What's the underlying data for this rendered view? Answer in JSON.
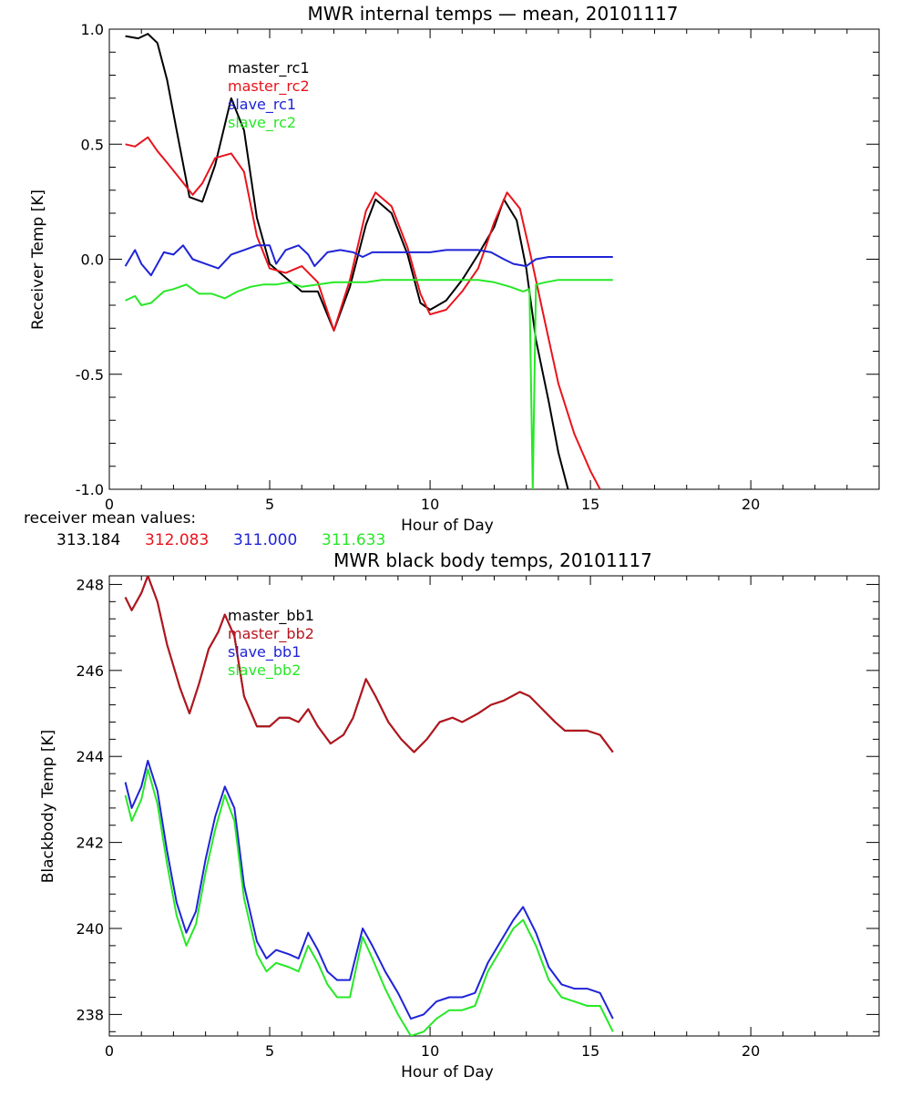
{
  "chart_data": [
    {
      "type": "line",
      "title": "MWR internal temps — mean, 20101117",
      "xlabel": "Hour of Day",
      "ylabel": "Receiver Temp [K]",
      "xlim": [
        0,
        24
      ],
      "ylim": [
        -1.0,
        1.0
      ],
      "xticks": [
        0,
        5,
        10,
        15,
        20
      ],
      "xtick_labels": [
        "0",
        "5",
        "10",
        "15",
        "20"
      ],
      "yticks": [
        1.0,
        0.5,
        0.0,
        -0.5,
        -1.0
      ],
      "ytick_labels": [
        "1.0",
        "0.5",
        "0.0",
        "-0.5",
        "-1.0"
      ],
      "grid": false,
      "legend_placement": "top-left inside",
      "series": [
        {
          "name": "master_rc1",
          "color": "#000000",
          "x": [
            0.5,
            0.9,
            1.2,
            1.5,
            1.8,
            2.1,
            2.5,
            2.9,
            3.3,
            3.8,
            4.2,
            4.6,
            5.0,
            5.5,
            6.0,
            6.5,
            7.0,
            7.5,
            8.0,
            8.3,
            8.8,
            9.3,
            9.7,
            10.0,
            10.5,
            11.0,
            11.5,
            12.0,
            12.3,
            12.7,
            13.0,
            13.3,
            13.7,
            14.0,
            14.3
          ],
          "y": [
            0.97,
            0.96,
            0.98,
            0.94,
            0.78,
            0.56,
            0.27,
            0.25,
            0.41,
            0.7,
            0.56,
            0.18,
            -0.02,
            -0.08,
            -0.14,
            -0.14,
            -0.31,
            -0.12,
            0.15,
            0.26,
            0.2,
            0.02,
            -0.19,
            -0.22,
            -0.18,
            -0.09,
            0.02,
            0.14,
            0.26,
            0.17,
            -0.04,
            -0.35,
            -0.62,
            -0.84,
            -1.0
          ]
        },
        {
          "name": "master_rc2",
          "color": "#e8141d",
          "x": [
            0.5,
            0.8,
            1.2,
            1.5,
            1.8,
            2.2,
            2.6,
            2.9,
            3.3,
            3.8,
            4.2,
            4.6,
            5.0,
            5.5,
            6.0,
            6.5,
            7.0,
            7.5,
            8.0,
            8.3,
            8.8,
            9.3,
            9.7,
            10.0,
            10.5,
            11.0,
            11.5,
            12.0,
            12.4,
            12.8,
            13.1,
            13.5,
            14.0,
            14.5,
            15.0,
            15.3
          ],
          "y": [
            0.5,
            0.49,
            0.53,
            0.47,
            0.42,
            0.35,
            0.28,
            0.33,
            0.44,
            0.46,
            0.38,
            0.1,
            -0.04,
            -0.06,
            -0.03,
            -0.1,
            -0.31,
            -0.09,
            0.21,
            0.29,
            0.23,
            0.05,
            -0.15,
            -0.24,
            -0.22,
            -0.14,
            -0.04,
            0.16,
            0.29,
            0.22,
            0.04,
            -0.22,
            -0.54,
            -0.76,
            -0.92,
            -1.0
          ]
        },
        {
          "name": "slave_rc1",
          "color": "#1f24d6",
          "x": [
            0.5,
            0.8,
            1.0,
            1.3,
            1.7,
            2.0,
            2.3,
            2.6,
            3.0,
            3.4,
            3.8,
            4.2,
            4.6,
            5.0,
            5.2,
            5.5,
            5.9,
            6.2,
            6.4,
            6.8,
            7.2,
            7.6,
            7.9,
            8.2,
            8.6,
            9.0,
            9.5,
            10.0,
            10.5,
            11.0,
            11.5,
            11.9,
            12.3,
            12.6,
            13.0,
            13.3,
            13.7,
            14.2,
            14.7,
            15.2,
            15.7
          ],
          "y": [
            -0.03,
            0.04,
            -0.02,
            -0.07,
            0.03,
            0.02,
            0.06,
            0.0,
            -0.02,
            -0.04,
            0.02,
            0.04,
            0.06,
            0.06,
            -0.02,
            0.04,
            0.06,
            0.02,
            -0.03,
            0.03,
            0.04,
            0.03,
            0.01,
            0.03,
            0.03,
            0.03,
            0.03,
            0.03,
            0.04,
            0.04,
            0.04,
            0.03,
            0.0,
            -0.02,
            -0.03,
            0.0,
            0.01,
            0.01,
            0.01,
            0.01,
            0.01
          ]
        },
        {
          "name": "slave_rc2",
          "color": "#27e827",
          "x": [
            0.5,
            0.8,
            1.0,
            1.3,
            1.7,
            2.0,
            2.4,
            2.8,
            3.2,
            3.6,
            4.0,
            4.4,
            4.8,
            5.2,
            5.6,
            6.0,
            6.5,
            7.0,
            7.5,
            8.0,
            8.5,
            9.0,
            9.5,
            10.0,
            10.5,
            11.0,
            11.5,
            12.0,
            12.5,
            12.9,
            13.1,
            13.2,
            13.3,
            13.6,
            14.0,
            14.5,
            15.0,
            15.7
          ],
          "y": [
            -0.18,
            -0.16,
            -0.2,
            -0.19,
            -0.14,
            -0.13,
            -0.11,
            -0.15,
            -0.15,
            -0.17,
            -0.14,
            -0.12,
            -0.11,
            -0.11,
            -0.1,
            -0.12,
            -0.11,
            -0.1,
            -0.1,
            -0.1,
            -0.09,
            -0.09,
            -0.09,
            -0.09,
            -0.09,
            -0.09,
            -0.09,
            -0.1,
            -0.12,
            -0.14,
            -0.13,
            -1.0,
            -0.11,
            -0.1,
            -0.09,
            -0.09,
            -0.09,
            -0.09
          ]
        }
      ],
      "annotation": {
        "label": "receiver mean values:",
        "values": [
          {
            "text": "313.184",
            "color": "#000000"
          },
          {
            "text": "312.083",
            "color": "#e8141d"
          },
          {
            "text": "311.000",
            "color": "#1f24d6"
          },
          {
            "text": "311.633",
            "color": "#27e827"
          }
        ]
      }
    },
    {
      "type": "line",
      "title": "MWR black body temps, 20101117",
      "xlabel": "Hour of Day",
      "ylabel": "Blackbody Temp [K]",
      "xlim": [
        0,
        24
      ],
      "ylim": [
        237.5,
        248.2
      ],
      "xticks": [
        0,
        5,
        10,
        15,
        20
      ],
      "xtick_labels": [
        "0",
        "5",
        "10",
        "15",
        "20"
      ],
      "yticks": [
        248,
        246,
        244,
        242,
        240,
        238
      ],
      "ytick_labels": [
        "248",
        "246",
        "244",
        "242",
        "240",
        "238"
      ],
      "grid": false,
      "legend_placement": "top-left inside",
      "series": [
        {
          "name": "master_bb1",
          "color": "#000000",
          "x": [
            0.5,
            0.7,
            1.0,
            1.2,
            1.5,
            1.8,
            2.2,
            2.5,
            2.8,
            3.1,
            3.4,
            3.6,
            3.9,
            4.2,
            4.6,
            5.0,
            5.3,
            5.6,
            5.9,
            6.2,
            6.5,
            6.9,
            7.3,
            7.6,
            8.0,
            8.3,
            8.7,
            9.1,
            9.5,
            9.9,
            10.3,
            10.7,
            11.0,
            11.5,
            11.9,
            12.3,
            12.8,
            13.1,
            13.5,
            13.9,
            14.2,
            14.5,
            14.9,
            15.3,
            15.7
          ],
          "y": [
            247.7,
            247.4,
            247.8,
            248.2,
            247.6,
            246.6,
            245.6,
            245.0,
            245.7,
            246.5,
            246.9,
            247.3,
            246.8,
            245.4,
            244.7,
            244.7,
            244.9,
            244.9,
            244.8,
            245.1,
            244.7,
            244.3,
            244.5,
            244.9,
            245.8,
            245.4,
            244.8,
            244.4,
            244.1,
            244.4,
            244.8,
            244.9,
            244.8,
            245.0,
            245.2,
            245.3,
            245.5,
            245.4,
            245.1,
            244.8,
            244.6,
            244.6,
            244.6,
            244.5,
            244.1
          ]
        },
        {
          "name": "master_bb2",
          "color": "#b8141d",
          "x": [
            0.5,
            0.7,
            1.0,
            1.2,
            1.5,
            1.8,
            2.2,
            2.5,
            2.8,
            3.1,
            3.4,
            3.6,
            3.9,
            4.2,
            4.6,
            5.0,
            5.3,
            5.6,
            5.9,
            6.2,
            6.5,
            6.9,
            7.3,
            7.6,
            8.0,
            8.3,
            8.7,
            9.1,
            9.5,
            9.9,
            10.3,
            10.7,
            11.0,
            11.5,
            11.9,
            12.3,
            12.8,
            13.1,
            13.5,
            13.9,
            14.2,
            14.5,
            14.9,
            15.3,
            15.7
          ],
          "y": [
            247.7,
            247.4,
            247.8,
            248.2,
            247.6,
            246.6,
            245.6,
            245.0,
            245.7,
            246.5,
            246.9,
            247.3,
            246.8,
            245.4,
            244.7,
            244.7,
            244.9,
            244.9,
            244.8,
            245.1,
            244.7,
            244.3,
            244.5,
            244.9,
            245.8,
            245.4,
            244.8,
            244.4,
            244.1,
            244.4,
            244.8,
            244.9,
            244.8,
            245.0,
            245.2,
            245.3,
            245.5,
            245.4,
            245.1,
            244.8,
            244.6,
            244.6,
            244.6,
            244.5,
            244.1
          ]
        },
        {
          "name": "slave_bb1",
          "color": "#1f24d6",
          "x": [
            0.5,
            0.7,
            1.0,
            1.2,
            1.5,
            1.8,
            2.1,
            2.4,
            2.7,
            3.0,
            3.3,
            3.6,
            3.9,
            4.2,
            4.6,
            4.9,
            5.2,
            5.6,
            5.9,
            6.2,
            6.5,
            6.8,
            7.1,
            7.5,
            7.9,
            8.2,
            8.6,
            9.0,
            9.4,
            9.8,
            10.2,
            10.6,
            11.0,
            11.4,
            11.8,
            12.2,
            12.6,
            12.9,
            13.3,
            13.7,
            14.1,
            14.5,
            14.9,
            15.3,
            15.7
          ],
          "y": [
            243.4,
            242.8,
            243.3,
            243.9,
            243.2,
            241.8,
            240.6,
            239.9,
            240.4,
            241.6,
            242.6,
            243.3,
            242.8,
            241.0,
            239.7,
            239.3,
            239.5,
            239.4,
            239.3,
            239.9,
            239.5,
            239.0,
            238.8,
            238.8,
            240.0,
            239.6,
            239.0,
            238.5,
            237.9,
            238.0,
            238.3,
            238.4,
            238.4,
            238.5,
            239.2,
            239.7,
            240.2,
            240.5,
            239.9,
            239.1,
            238.7,
            238.6,
            238.6,
            238.5,
            237.9
          ]
        },
        {
          "name": "slave_bb2",
          "color": "#27e827",
          "x": [
            0.5,
            0.7,
            1.0,
            1.2,
            1.5,
            1.8,
            2.1,
            2.4,
            2.7,
            3.0,
            3.3,
            3.6,
            3.9,
            4.2,
            4.6,
            4.9,
            5.2,
            5.6,
            5.9,
            6.2,
            6.5,
            6.8,
            7.1,
            7.5,
            7.9,
            8.2,
            8.6,
            9.0,
            9.4,
            9.8,
            10.2,
            10.6,
            11.0,
            11.4,
            11.8,
            12.2,
            12.6,
            12.9,
            13.3,
            13.7,
            14.1,
            14.5,
            14.9,
            15.3,
            15.7
          ],
          "y": [
            243.1,
            242.5,
            243.0,
            243.7,
            242.9,
            241.5,
            240.3,
            239.6,
            240.1,
            241.3,
            242.3,
            243.1,
            242.5,
            240.7,
            239.4,
            239.0,
            239.2,
            239.1,
            239.0,
            239.6,
            239.2,
            238.7,
            238.4,
            238.4,
            239.8,
            239.3,
            238.6,
            238.0,
            237.5,
            237.6,
            237.9,
            238.1,
            238.1,
            238.2,
            239.0,
            239.5,
            240.0,
            240.2,
            239.6,
            238.8,
            238.4,
            238.3,
            238.2,
            238.2,
            237.6
          ]
        }
      ]
    }
  ]
}
